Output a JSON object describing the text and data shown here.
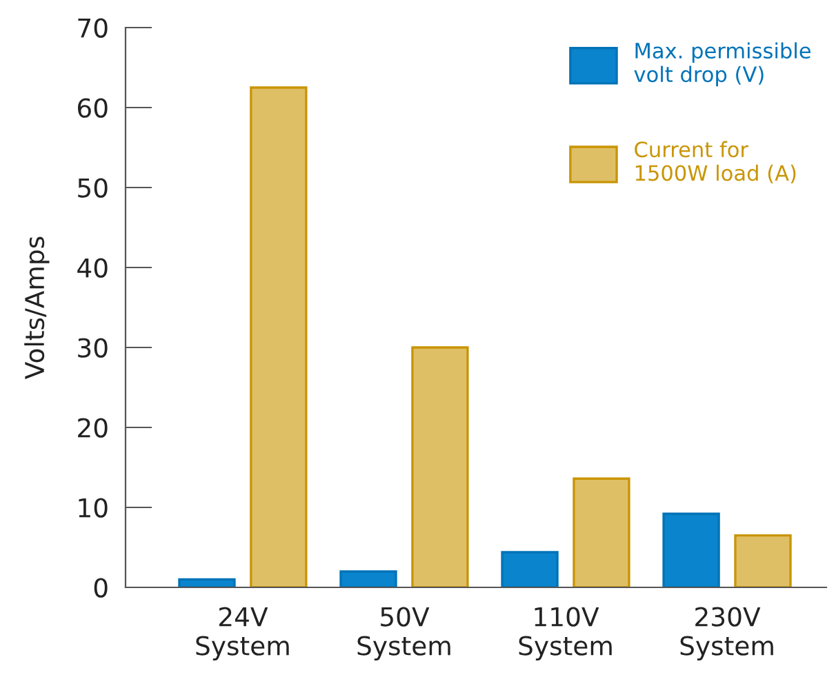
{
  "chart_data": {
    "type": "bar",
    "ylabel": "Volts/Amps",
    "categories": [
      "24V\nSystem",
      "50V\nSystem",
      "110V\nSystem",
      "230V\nSystem"
    ],
    "series": [
      {
        "name": "Max. permissible\nvolt drop (V)",
        "color": "#0a84cc",
        "values": [
          1.0,
          2.0,
          4.4,
          9.2
        ]
      },
      {
        "name": "Current for\n1500W load (A)",
        "color": "#dfbf66",
        "values": [
          62.5,
          30,
          13.6,
          6.5
        ]
      }
    ],
    "ylim": [
      0,
      70
    ],
    "yticks": [
      0,
      10,
      20,
      30,
      40,
      50,
      60,
      70
    ],
    "legend": "top right"
  }
}
